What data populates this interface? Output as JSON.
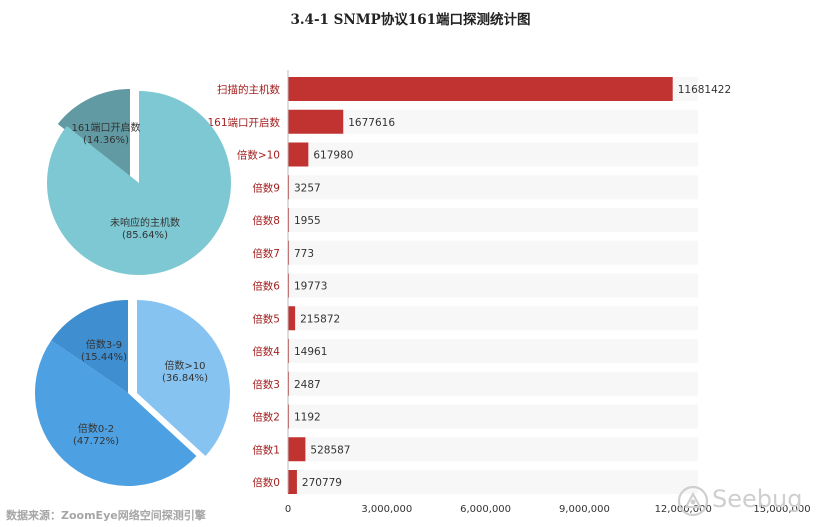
{
  "title": "3.4-1 SNMP协议161端口探测统计图",
  "source": "数据来源：ZoomEye网络空间探测引擎",
  "watermark": "Seebug",
  "colors": {
    "bar": "#c13331",
    "bar_bg": "#f7f7f7",
    "label_red": "#a32020",
    "pie1_large": "#7ec8d3",
    "pie1_small": "#619aa2",
    "pie2_a": "#87c3f0",
    "pie2_b": "#4da0e2",
    "pie2_c": "#3e8ed0"
  },
  "chart_data": [
    {
      "type": "bar",
      "orientation": "horizontal",
      "categories": [
        "扫描的主机数",
        "161端口开启数",
        "倍数>10",
        "倍数9",
        "倍数8",
        "倍数7",
        "倍数6",
        "倍数5",
        "倍数4",
        "倍数3",
        "倍数2",
        "倍数1",
        "倍数0"
      ],
      "values": [
        11681422,
        1677616,
        617980,
        3257,
        1955,
        773,
        19773,
        215872,
        14961,
        2487,
        1192,
        528587,
        270779
      ],
      "xlim": [
        0,
        15000000
      ],
      "xticks": [
        "0",
        "3,000,000",
        "6,000,000",
        "9,000,000",
        "12,000,000",
        "15,000,000"
      ],
      "data_labels": true
    },
    {
      "type": "pie",
      "slices": [
        {
          "label": "161端口开启数",
          "percent_label": "(14.36%)",
          "value": 14.36
        },
        {
          "label": "未响应的主机数",
          "percent_label": "(85.64%)",
          "value": 85.64
        }
      ]
    },
    {
      "type": "pie",
      "slices": [
        {
          "label": "倍数>10",
          "percent_label": "(36.84%)",
          "value": 36.84
        },
        {
          "label": "倍数0-2",
          "percent_label": "(47.72%)",
          "value": 47.72
        },
        {
          "label": "倍数3-9",
          "percent_label": "(15.44%)",
          "value": 15.44
        }
      ]
    }
  ]
}
